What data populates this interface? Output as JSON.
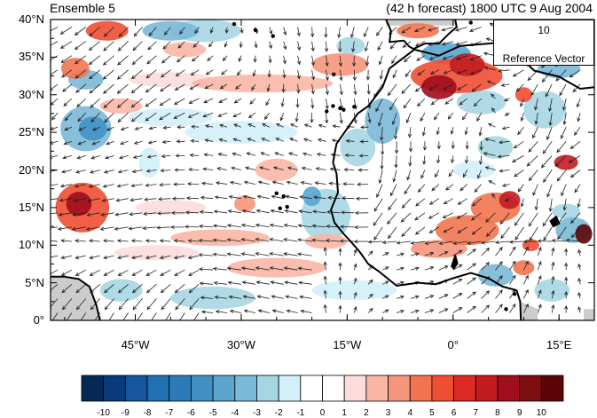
{
  "header": {
    "left_title": "Ensemble 5",
    "right_title": "(42 h forecast) 1800 UTC 9 Aug 2004"
  },
  "map": {
    "lon_range": [
      -57,
      20
    ],
    "lat_range": [
      0,
      40
    ],
    "lat_ticks": [
      {
        "value": 40,
        "label": "40°N"
      },
      {
        "value": 35,
        "label": "35°N"
      },
      {
        "value": 30,
        "label": "30°N"
      },
      {
        "value": 25,
        "label": "25°N"
      },
      {
        "value": 20,
        "label": "20°N"
      },
      {
        "value": 15,
        "label": "15°N"
      },
      {
        "value": 10,
        "label": "10°N"
      },
      {
        "value": 5,
        "label": "5°N"
      },
      {
        "value": 0,
        "label": "0°"
      }
    ],
    "lon_ticks": [
      {
        "value": -45,
        "label": "45°W"
      },
      {
        "value": -30,
        "label": "30°W"
      },
      {
        "value": -15,
        "label": "15°W"
      },
      {
        "value": 0,
        "label": "0°"
      },
      {
        "value": 15,
        "label": "15°E"
      }
    ],
    "land_color": "#cccccc",
    "coast_color": "#000000",
    "vector_color": "#222222",
    "anomaly_blobs": [
      {
        "lon": -52.5,
        "lat": 15.0,
        "rlon": 3.8,
        "rlat": 3.3,
        "level": 5
      },
      {
        "lon": -53.0,
        "lat": 15.5,
        "rlon": 1.8,
        "rlat": 1.6,
        "level": 8
      },
      {
        "lon": -49.0,
        "lat": 38.5,
        "rlon": 3.0,
        "rlat": 1.3,
        "level": 5
      },
      {
        "lon": -53.5,
        "lat": 33.5,
        "rlon": 2.0,
        "rlat": 1.4,
        "level": 4
      },
      {
        "lon": -52.0,
        "lat": 25.5,
        "rlon": 3.6,
        "rlat": 3.0,
        "level": -3
      },
      {
        "lon": -51.0,
        "lat": 25.5,
        "rlon": 2.0,
        "rlat": 1.6,
        "level": -5
      },
      {
        "lon": -52.0,
        "lat": 32.0,
        "rlon": 2.5,
        "rlat": 1.3,
        "level": -3
      },
      {
        "lon": -40.0,
        "lat": 38.5,
        "rlon": 4.0,
        "rlat": 1.3,
        "level": -3
      },
      {
        "lon": -35.0,
        "lat": 38.5,
        "rlon": 5.0,
        "rlat": 1.5,
        "level": -2
      },
      {
        "lon": -27.0,
        "lat": 31.5,
        "rlon": 10.0,
        "rlat": 1.2,
        "level": 2
      },
      {
        "lon": -40.0,
        "lat": 32.0,
        "rlon": 6.0,
        "rlat": 1.0,
        "level": 1
      },
      {
        "lon": -16.0,
        "lat": 34.0,
        "rlon": 4.0,
        "rlat": 1.5,
        "level": 3
      },
      {
        "lon": -14.5,
        "lat": 36.5,
        "rlon": 2.0,
        "rlat": 1.2,
        "level": -2
      },
      {
        "lon": -5.0,
        "lat": 38.5,
        "rlon": 3.0,
        "rlat": 1.0,
        "level": 4
      },
      {
        "lon": 0.5,
        "lat": 32.5,
        "rlon": 6.5,
        "rlat": 2.3,
        "level": 5
      },
      {
        "lon": -2.0,
        "lat": 31.0,
        "rlon": 2.5,
        "rlat": 1.6,
        "level": 8
      },
      {
        "lon": 2.0,
        "lat": 34.0,
        "rlon": 2.5,
        "rlat": 1.5,
        "level": 7
      },
      {
        "lon": -1.0,
        "lat": 35.5,
        "rlon": 3.5,
        "rlat": 1.4,
        "level": -4
      },
      {
        "lon": 4.0,
        "lat": 29.0,
        "rlon": 3.5,
        "rlat": 1.6,
        "level": -2
      },
      {
        "lon": -10.0,
        "lat": 26.5,
        "rlon": 2.5,
        "rlat": 3.0,
        "level": -3
      },
      {
        "lon": -13.5,
        "lat": 23.0,
        "rlon": 2.5,
        "rlat": 2.5,
        "level": -2
      },
      {
        "lon": -18.0,
        "lat": 14.0,
        "rlon": 3.5,
        "rlat": 3.5,
        "level": -2
      },
      {
        "lon": -20.0,
        "lat": 16.5,
        "rlon": 1.3,
        "rlat": 1.3,
        "level": -4
      },
      {
        "lon": -25.0,
        "lat": 20.0,
        "rlon": 3.0,
        "rlat": 1.5,
        "level": 2
      },
      {
        "lon": -29.5,
        "lat": 15.5,
        "rlon": 1.5,
        "rlat": 1.1,
        "level": 3
      },
      {
        "lon": -40.0,
        "lat": 15.0,
        "rlon": 5.0,
        "rlat": 1.0,
        "level": 1
      },
      {
        "lon": -43.0,
        "lat": 21.0,
        "rlon": 1.5,
        "rlat": 2.0,
        "level": -1
      },
      {
        "lon": -33.0,
        "lat": 11.0,
        "rlon": 7.0,
        "rlat": 1.1,
        "level": 2
      },
      {
        "lon": -42.0,
        "lat": 9.0,
        "rlon": 6.0,
        "rlat": 1.0,
        "level": 1
      },
      {
        "lon": -34.0,
        "lat": 3.0,
        "rlon": 6.0,
        "rlat": 1.5,
        "level": -2
      },
      {
        "lon": -47.0,
        "lat": 4.0,
        "rlon": 3.0,
        "rlat": 1.5,
        "level": -2
      },
      {
        "lon": -25.0,
        "lat": 7.0,
        "rlon": 7.0,
        "rlat": 1.3,
        "level": 2
      },
      {
        "lon": -14.0,
        "lat": 4.0,
        "rlon": 6.0,
        "rlat": 1.3,
        "level": -1
      },
      {
        "lon": -30.0,
        "lat": 25.0,
        "rlon": 8.0,
        "rlat": 1.5,
        "level": -1
      },
      {
        "lon": -40.0,
        "lat": 27.0,
        "rlon": 6.0,
        "rlat": 1.2,
        "level": -1
      },
      {
        "lon": 2.0,
        "lat": 12.0,
        "rlon": 4.5,
        "rlat": 2.0,
        "level": 4
      },
      {
        "lon": 6.0,
        "lat": 15.0,
        "rlon": 3.5,
        "rlat": 2.0,
        "level": 4
      },
      {
        "lon": 8.0,
        "lat": 16.0,
        "rlon": 1.5,
        "rlat": 1.2,
        "level": 7
      },
      {
        "lon": -2.0,
        "lat": 9.5,
        "rlon": 4.0,
        "rlat": 1.2,
        "level": 3
      },
      {
        "lon": 3.0,
        "lat": 20.0,
        "rlon": 3.0,
        "rlat": 1.2,
        "level": -1
      },
      {
        "lon": 6.0,
        "lat": 23.0,
        "rlon": 2.5,
        "rlat": 1.5,
        "level": -2
      },
      {
        "lon": 13.0,
        "lat": 28.0,
        "rlon": 3.0,
        "rlat": 2.5,
        "level": -2
      },
      {
        "lon": 10.0,
        "lat": 30.0,
        "rlon": 1.2,
        "rlat": 1.0,
        "level": 5
      },
      {
        "lon": 15.0,
        "lat": 33.5,
        "rlon": 3.0,
        "rlat": 1.3,
        "level": -3
      },
      {
        "lon": 16.0,
        "lat": 21.0,
        "rlon": 1.7,
        "rlat": 1.0,
        "level": 7
      },
      {
        "lon": 18.5,
        "lat": 11.5,
        "rlon": 1.2,
        "rlat": 1.3,
        "level": 10
      },
      {
        "lon": 17.0,
        "lat": 12.0,
        "rlon": 2.5,
        "rlat": 1.7,
        "level": -3
      },
      {
        "lon": 16.0,
        "lat": 14.5,
        "rlon": 2.0,
        "rlat": 1.0,
        "level": -2
      },
      {
        "lon": 10.0,
        "lat": 7.0,
        "rlon": 1.5,
        "rlat": 1.0,
        "level": 4
      },
      {
        "lon": 11.0,
        "lat": 10.0,
        "rlon": 1.2,
        "rlat": 0.8,
        "level": 5
      },
      {
        "lon": 6.0,
        "lat": 6.0,
        "rlon": 2.5,
        "rlat": 1.5,
        "level": -3
      },
      {
        "lon": 14.0,
        "lat": 4.0,
        "rlon": 2.5,
        "rlat": 1.5,
        "level": -2
      },
      {
        "lon": -38.0,
        "lat": 36.0,
        "rlon": 3.0,
        "rlat": 1.0,
        "level": 2
      },
      {
        "lon": -47.0,
        "lat": 28.5,
        "rlon": 3.0,
        "rlat": 1.0,
        "level": 2
      },
      {
        "lon": -18.0,
        "lat": 10.5,
        "rlon": 3.0,
        "rlat": 1.0,
        "level": 2
      }
    ],
    "coastlines": [
      {
        "name": "africa-coast",
        "closed": false,
        "points": [
          [
            -5.5,
            36.0
          ],
          [
            -9.0,
            33.5
          ],
          [
            -10.0,
            31.0
          ],
          [
            -12.0,
            28.5
          ],
          [
            -13.5,
            27.5
          ],
          [
            -15.0,
            25.5
          ],
          [
            -16.5,
            23.5
          ],
          [
            -17.0,
            21.0
          ],
          [
            -16.5,
            19.5
          ],
          [
            -16.3,
            17.0
          ],
          [
            -17.3,
            14.7
          ],
          [
            -16.8,
            13.0
          ],
          [
            -15.5,
            11.5
          ],
          [
            -14.5,
            10.5
          ],
          [
            -13.3,
            9.2
          ],
          [
            -12.0,
            7.5
          ],
          [
            -10.5,
            6.5
          ],
          [
            -8.0,
            4.6
          ],
          [
            -5.0,
            5.0
          ],
          [
            -2.5,
            4.8
          ],
          [
            0.0,
            5.6
          ],
          [
            2.5,
            6.3
          ],
          [
            5.0,
            5.6
          ],
          [
            7.0,
            4.5
          ],
          [
            9.0,
            4.0
          ],
          [
            9.5,
            2.5
          ],
          [
            9.6,
            0.0
          ]
        ]
      },
      {
        "name": "north-africa-coast",
        "closed": false,
        "points": [
          [
            -5.5,
            36.0
          ],
          [
            -2.0,
            35.2
          ],
          [
            1.0,
            36.5
          ],
          [
            5.0,
            36.8
          ],
          [
            9.0,
            37.2
          ],
          [
            10.5,
            36.8
          ],
          [
            10.0,
            35.0
          ],
          [
            10.8,
            33.8
          ],
          [
            11.5,
            33.2
          ],
          [
            15.0,
            32.4
          ],
          [
            18.0,
            30.8
          ],
          [
            20.0,
            31.0
          ]
        ]
      },
      {
        "name": "iberia-coast",
        "closed": false,
        "points": [
          [
            -9.5,
            40.0
          ],
          [
            -8.8,
            38.5
          ],
          [
            -9.0,
            37.0
          ],
          [
            -7.0,
            37.2
          ],
          [
            -6.2,
            36.4
          ],
          [
            -5.6,
            36.1
          ],
          [
            -4.0,
            36.8
          ],
          [
            -2.0,
            36.8
          ],
          [
            -0.5,
            38.2
          ],
          [
            0.5,
            39.0
          ],
          [
            0.3,
            40.0
          ]
        ]
      },
      {
        "name": "south-america-coast",
        "closed": false,
        "points": [
          [
            -57.0,
            5.8
          ],
          [
            -55.0,
            5.8
          ],
          [
            -53.0,
            5.5
          ],
          [
            -51.5,
            4.5
          ],
          [
            -50.5,
            2.0
          ],
          [
            -50.0,
            0.0
          ]
        ]
      },
      {
        "name": "lake-chad",
        "closed": true,
        "points": [
          [
            13.8,
            13.2
          ],
          [
            14.6,
            13.8
          ],
          [
            15.0,
            12.9
          ],
          [
            14.2,
            12.5
          ]
        ]
      },
      {
        "name": "lake-volta",
        "closed": true,
        "points": [
          [
            -0.2,
            7.2
          ],
          [
            0.3,
            8.6
          ],
          [
            0.6,
            7.6
          ],
          [
            0.1,
            6.9
          ]
        ]
      }
    ],
    "islands": [
      {
        "lon": -16.0,
        "lat": 28.2
      },
      {
        "lon": -15.5,
        "lat": 28.0
      },
      {
        "lon": -14.0,
        "lat": 28.4
      },
      {
        "lon": -17.0,
        "lat": 28.5
      },
      {
        "lon": -17.9,
        "lat": 27.8
      },
      {
        "lon": -24.0,
        "lat": 16.5
      },
      {
        "lon": -23.5,
        "lat": 15.1
      },
      {
        "lon": -24.5,
        "lat": 14.9
      },
      {
        "lon": -25.0,
        "lat": 16.9
      },
      {
        "lon": -16.9,
        "lat": 32.7
      },
      {
        "lon": -25.5,
        "lat": 37.8
      },
      {
        "lon": -28.0,
        "lat": 38.6
      },
      {
        "lon": -31.0,
        "lat": 39.4
      },
      {
        "lon": 8.7,
        "lat": 3.5
      },
      {
        "lon": 7.5,
        "lat": 1.5
      },
      {
        "lon": 2.5,
        "lat": 39.6
      },
      {
        "lon": 9.0,
        "lat": 39.5
      }
    ]
  },
  "reference_vector": {
    "magnitude": "10",
    "label": "Reference Vector"
  },
  "colorbar": {
    "levels": [
      -10,
      -9,
      -8,
      -7,
      -6,
      -5,
      -4,
      -3,
      -2,
      -1,
      0,
      1,
      2,
      3,
      4,
      5,
      6,
      7,
      8,
      9,
      10
    ],
    "labels": [
      "-10",
      "-9",
      "-8",
      "-7",
      "-6",
      "-5",
      "-4",
      "-3",
      "-2",
      "-1",
      "0",
      "1",
      "2",
      "3",
      "4",
      "5",
      "6",
      "7",
      "8",
      "9",
      "10"
    ],
    "colors": [
      "#052a55",
      "#0b3a7a",
      "#15569e",
      "#2170b4",
      "#2c7ab9",
      "#4291c5",
      "#5ba5cf",
      "#7bb9d8",
      "#a6d6e3",
      "#d3effa",
      "#ffffff",
      "#ffffff",
      "#fcdcdc",
      "#f9b6a5",
      "#f6957c",
      "#f2744f",
      "#ee4e32",
      "#dc2b26",
      "#c31c20",
      "#a00d1c",
      "#7d0e12",
      "#5c0408"
    ]
  }
}
